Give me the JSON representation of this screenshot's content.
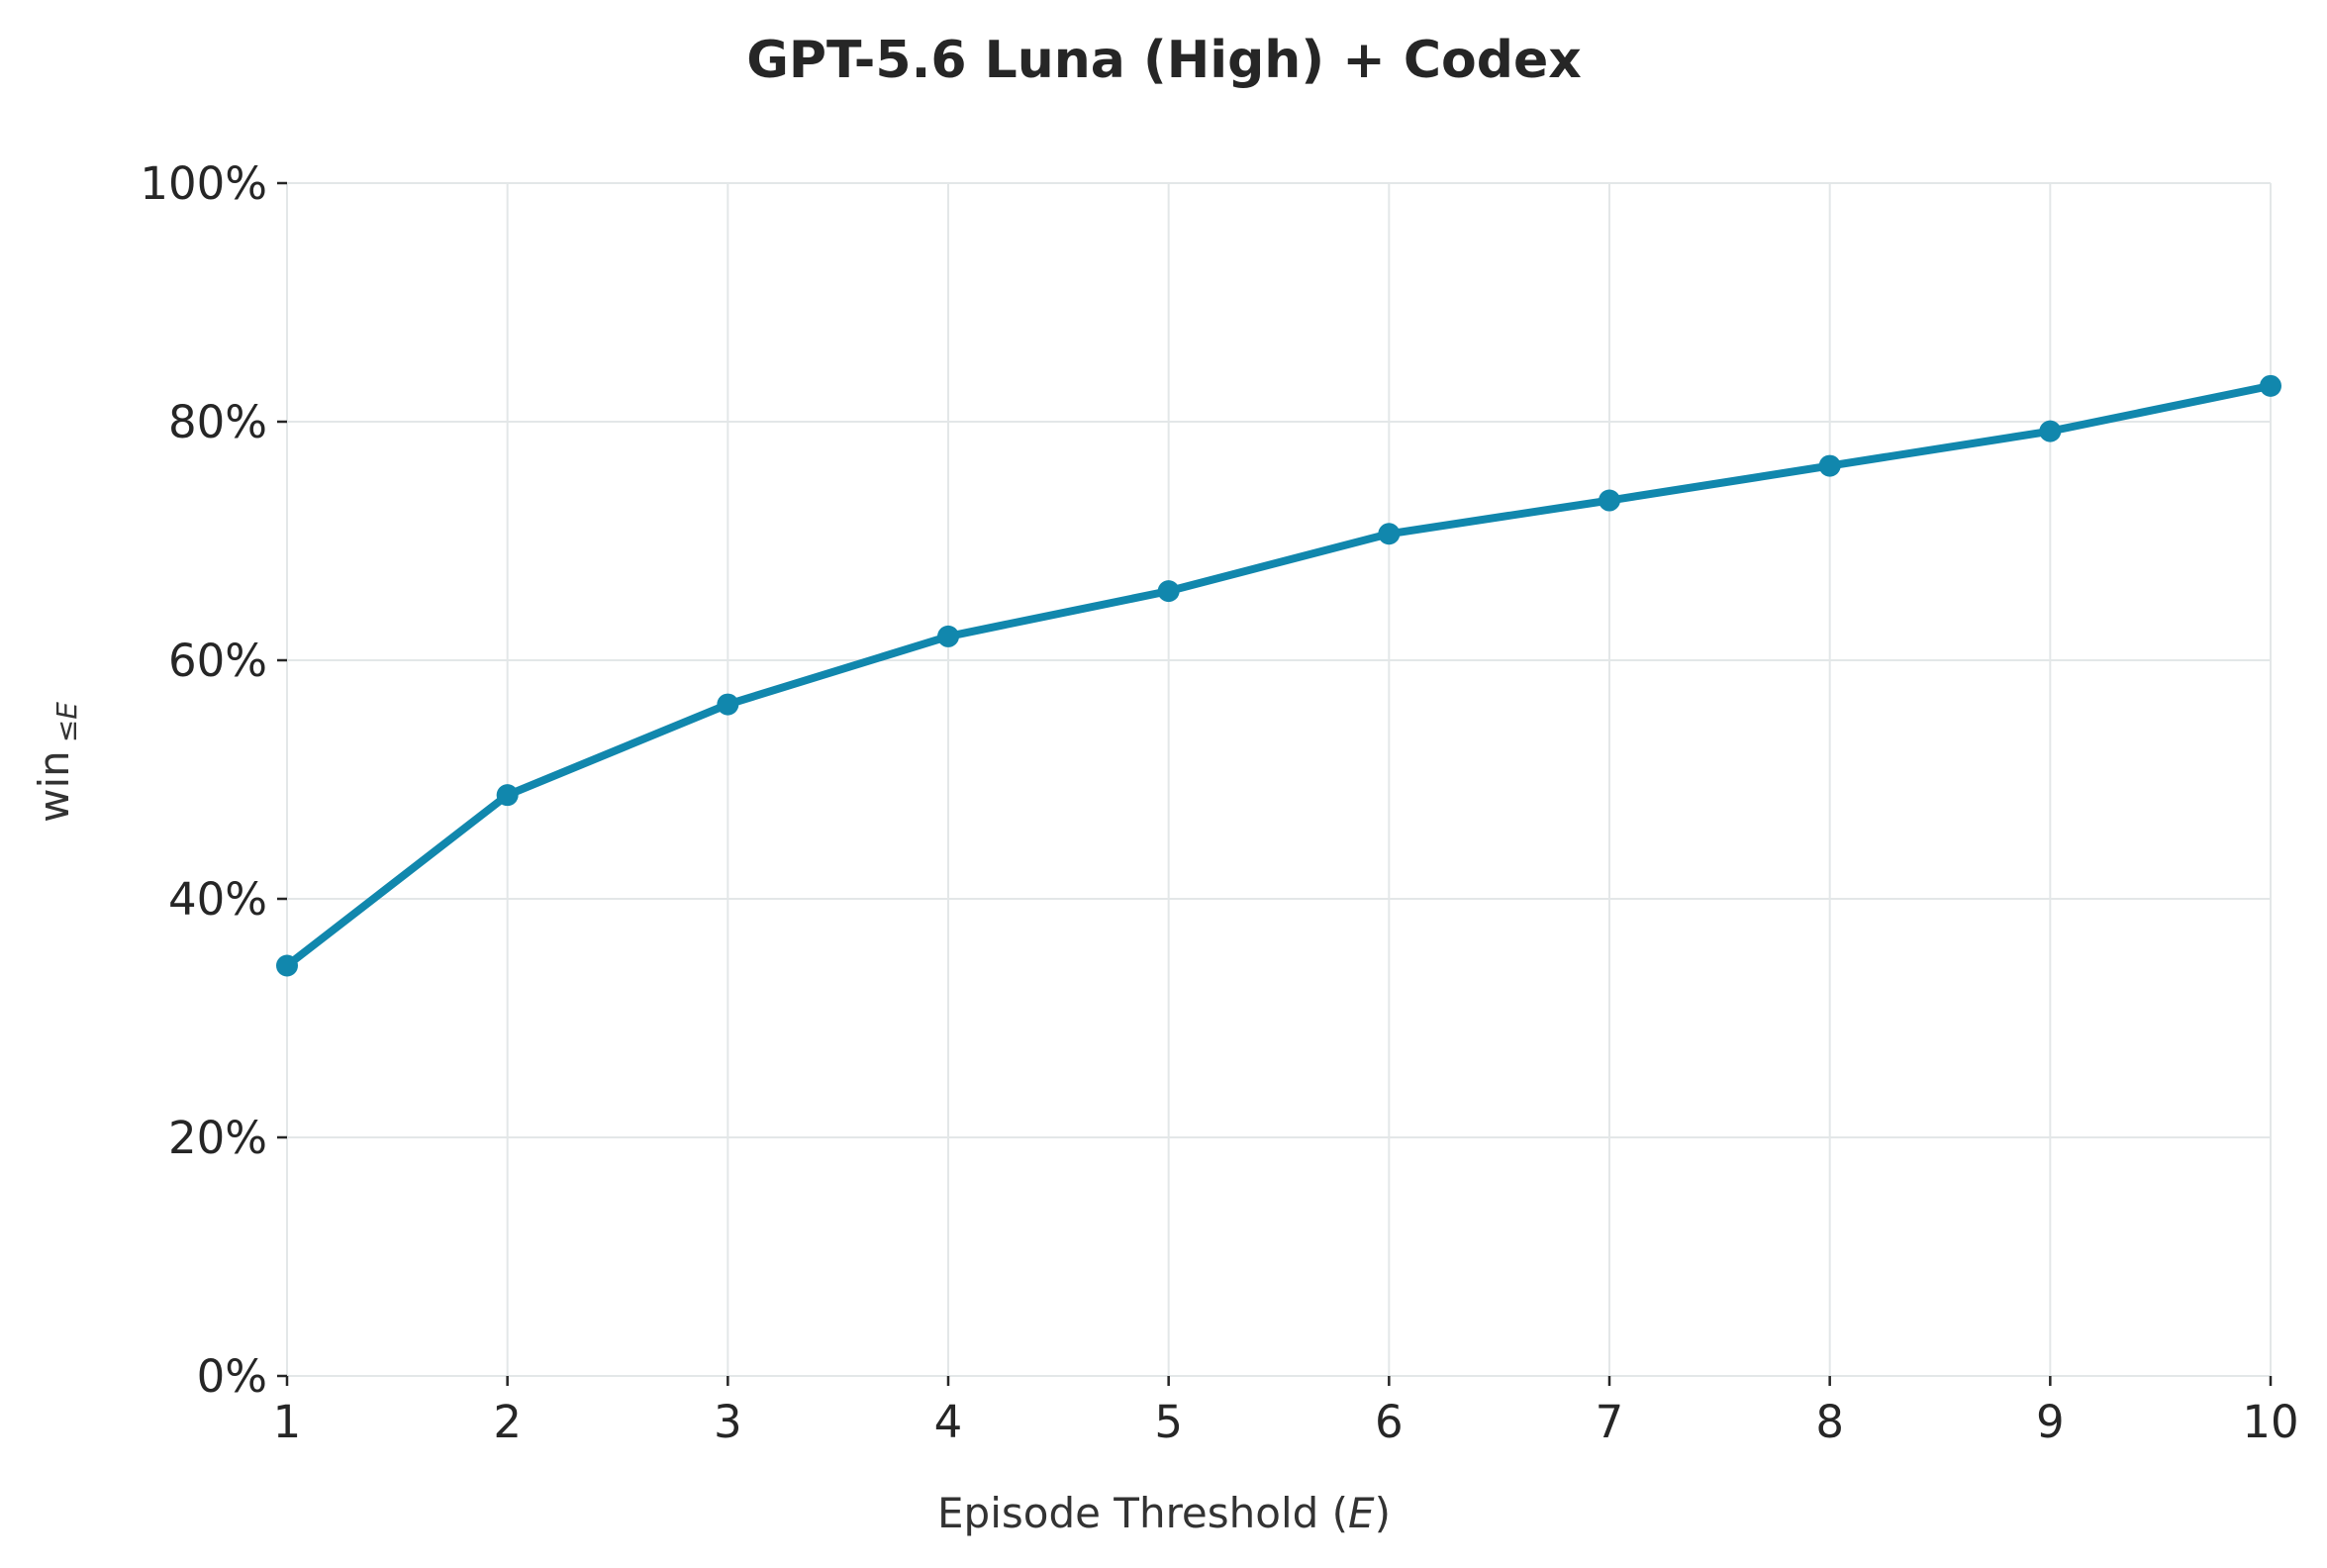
{
  "chart_data": {
    "type": "line",
    "title": "GPT-5.6 Luna (High) + Codex",
    "xlabel": {
      "prefix": "Episode Threshold (",
      "italic": "E",
      "suffix": ")"
    },
    "ylabel": {
      "main": "win",
      "subscript": "≤E"
    },
    "x": [
      1,
      2,
      3,
      4,
      5,
      6,
      7,
      8,
      9,
      10
    ],
    "xlim": [
      1,
      10
    ],
    "ylim": [
      0,
      100
    ],
    "x_ticks": [
      "1",
      "2",
      "3",
      "4",
      "5",
      "6",
      "7",
      "8",
      "9",
      "10"
    ],
    "y_tick_values": [
      0,
      20,
      40,
      60,
      80,
      100
    ],
    "y_ticks": [
      "0%",
      "20%",
      "40%",
      "60%",
      "80%",
      "100%"
    ],
    "grid": true,
    "legend": "none",
    "series": [
      {
        "values": [
          34.4,
          48.7,
          56.3,
          62.0,
          65.8,
          70.6,
          73.4,
          76.3,
          79.2,
          83.0
        ],
        "color": "#1187ad",
        "marker": "circle"
      }
    ]
  }
}
